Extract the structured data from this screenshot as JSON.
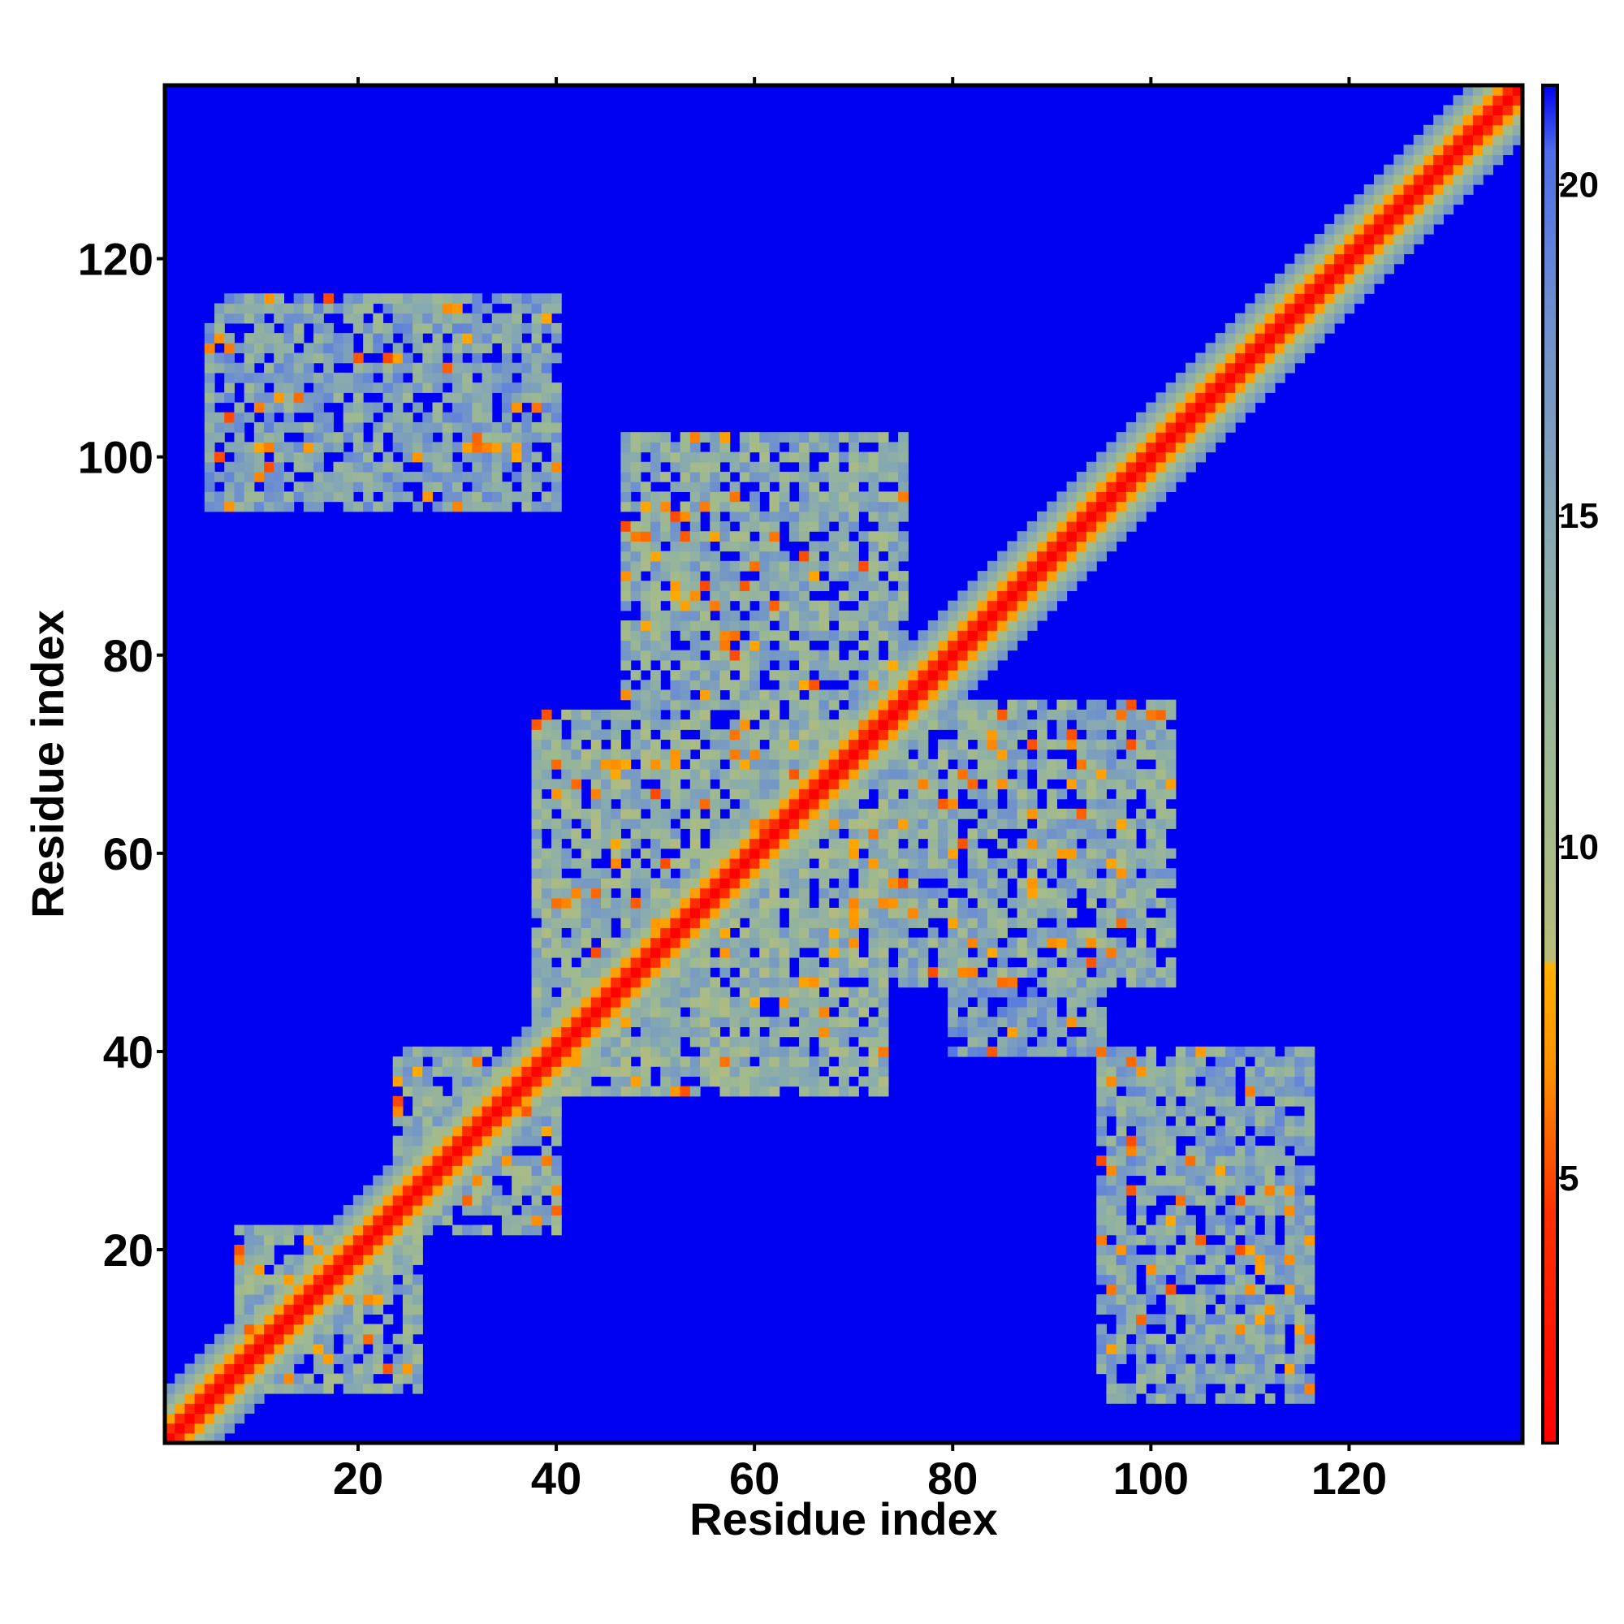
{
  "chart_data": {
    "type": "heatmap",
    "title": "",
    "xlabel": "Residue index",
    "ylabel": "Residue index",
    "n_residues": 137,
    "xlim": [
      1,
      137
    ],
    "ylim": [
      1,
      137
    ],
    "x_ticks": [
      20,
      40,
      60,
      80,
      100,
      120
    ],
    "y_ticks": [
      20,
      40,
      60,
      80,
      100,
      120
    ],
    "colorbar": {
      "range": [
        1,
        21.5
      ],
      "ticks": [
        5,
        10,
        15,
        20
      ],
      "stops": [
        {
          "value": 1.0,
          "color": "#ff0000"
        },
        {
          "value": 4.5,
          "color": "#ff3000"
        },
        {
          "value": 6.5,
          "color": "#ff8c00"
        },
        {
          "value": 8.2,
          "color": "#ffb000"
        },
        {
          "value": 8.3,
          "color": "#b8bc7a"
        },
        {
          "value": 11.0,
          "color": "#9fba8f"
        },
        {
          "value": 14.5,
          "color": "#87aab0"
        },
        {
          "value": 18.0,
          "color": "#6d8fcf"
        },
        {
          "value": 20.5,
          "color": "#4d6ee8"
        },
        {
          "value": 21.5,
          "color": "#0000f2"
        }
      ]
    },
    "background_value": 21.5,
    "diagonal_band": {
      "center_value": 1,
      "falloff_per_residue": 3.2,
      "band_halfwidth": 5
    },
    "contact_regions": [
      {
        "x_range": [
          5,
          40
        ],
        "y_range": [
          95,
          116
        ],
        "mean_value": 15
      },
      {
        "x_range": [
          95,
          116
        ],
        "y_range": [
          5,
          40
        ],
        "mean_value": 15
      },
      {
        "x_range": [
          38,
          73
        ],
        "y_range": [
          36,
          74
        ],
        "mean_value": 13
      },
      {
        "x_range": [
          47,
          75
        ],
        "y_range": [
          74,
          102
        ],
        "mean_value": 14
      },
      {
        "x_range": [
          74,
          102
        ],
        "y_range": [
          47,
          75
        ],
        "mean_value": 14
      },
      {
        "x_range": [
          24,
          40
        ],
        "y_range": [
          22,
          40
        ],
        "mean_value": 14
      },
      {
        "x_range": [
          8,
          26
        ],
        "y_range": [
          6,
          22
        ],
        "mean_value": 14
      },
      {
        "x_range": [
          80,
          95
        ],
        "y_range": [
          40,
          52
        ],
        "mean_value": 16
      }
    ]
  }
}
